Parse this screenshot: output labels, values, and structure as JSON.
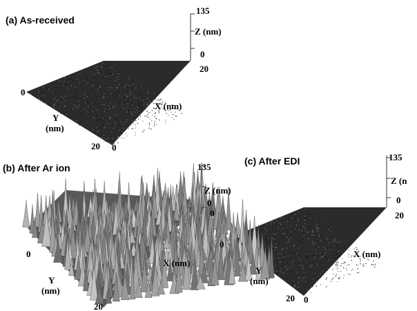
{
  "panels": [
    {
      "title": "(a) As-received",
      "z_max": "135",
      "z_label": "Z (nm)",
      "z_min": "0",
      "x_end": "20",
      "y_start": "0",
      "y_label_1": "Y",
      "y_label_2": "(nm)",
      "y_end": "20",
      "x_start": "0",
      "x_label": "X (nm)"
    },
    {
      "title": "(b)  After  Ar  ion",
      "z_max": "135",
      "z_label": "Z (nm)",
      "z_min": "0",
      "x_end": "0",
      "y_start": "0",
      "y_label_1": "Y",
      "y_label_2": "(nm)",
      "y_end": "20",
      "x_label": "X (nm)"
    },
    {
      "title": "(c) After EDI",
      "z_max": "135",
      "z_label": "Z (n",
      "z_min": "0",
      "x_end": "20",
      "y_start": "0",
      "y_label_1": "Y",
      "y_label_2": "(nm)",
      "y_end": "20",
      "x_start": "0",
      "x_label": "X (nm)"
    }
  ]
}
